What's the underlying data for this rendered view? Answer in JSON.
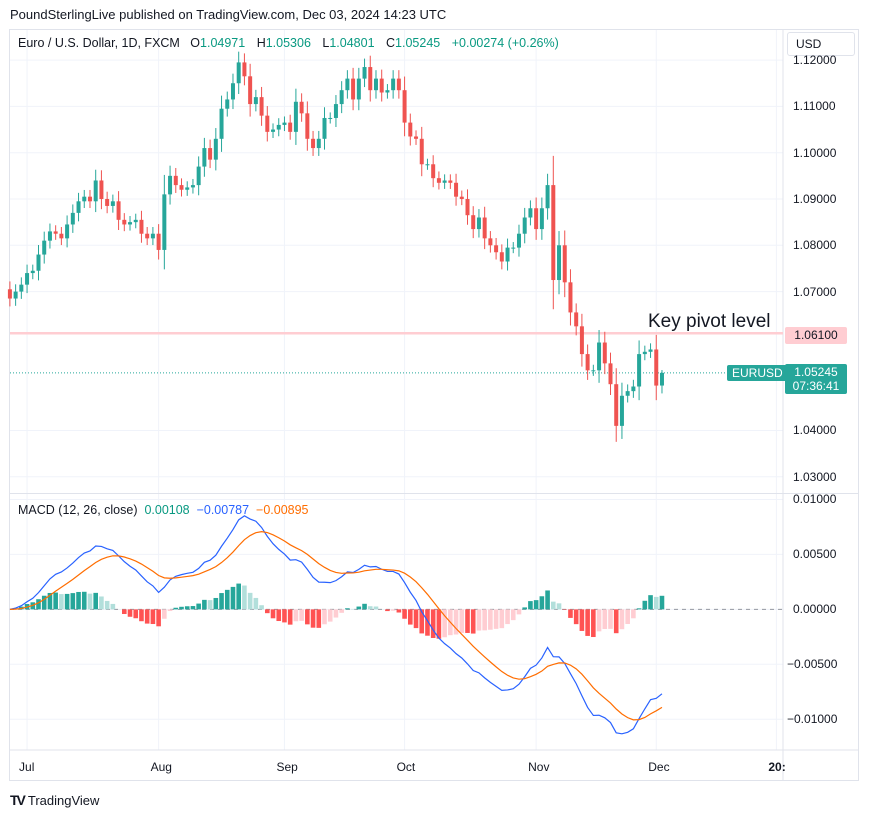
{
  "header": {
    "published": "PoundSterlingLive published on TradingView.com, Dec 03, 2024 14:23 UTC"
  },
  "legend": {
    "symbol": "Euro / U.S. Dollar, 1D, FXCM",
    "o_label": "O",
    "o": "1.04971",
    "h_label": "H",
    "h": "1.05306",
    "l_label": "L",
    "l": "1.04801",
    "c_label": "C",
    "c": "1.05245",
    "change": "+0.00274 (+0.26%)"
  },
  "currency": "USD",
  "annotation": {
    "text": "Key pivot level",
    "price_label": "1.06100"
  },
  "last_price": {
    "symbol": "EURUSD",
    "price": "1.05245",
    "countdown": "07:36:41"
  },
  "macd_legend": {
    "title": "MACD (12, 26, close)",
    "hist": "0.00108",
    "macd": "−0.00787",
    "signal": "−0.00895"
  },
  "footer": {
    "brand": "TradingView"
  },
  "colors": {
    "up": "#26a69a",
    "down": "#ef5350",
    "macd": "#2962ff",
    "signal": "#ff6d00",
    "hist_up_strong": "#26a69a",
    "hist_up_weak": "#b2dfdb",
    "hist_down_strong": "#ff5252",
    "hist_down_weak": "#ffcdd2",
    "pivot": "#ffcdd2"
  },
  "chart_data": {
    "type": "candlestick",
    "title": "Euro / U.S. Dollar, 1D, FXCM",
    "price_ticks": [
      "1.12000",
      "1.11000",
      "1.10000",
      "1.09000",
      "1.08000",
      "1.07000",
      "1.04000",
      "1.03000"
    ],
    "price_range": [
      1.0265,
      1.1265
    ],
    "macd_ticks": [
      "0.01000",
      "0.00500",
      "0.00000",
      "−0.00500",
      "−0.01000"
    ],
    "macd_range": [
      -0.0128,
      0.0105
    ],
    "time_labels": [
      "Jul",
      "Aug",
      "Sep",
      "Oct",
      "Nov",
      "Dec",
      "20:"
    ],
    "time_label_index": [
      3,
      26,
      48,
      69,
      92,
      113,
      134
    ],
    "pivot_level": 1.061,
    "first_open": 1.0705,
    "closes": [
      1.0685,
      1.07,
      1.0715,
      1.074,
      1.0745,
      1.078,
      1.081,
      1.083,
      1.0825,
      1.0815,
      1.0845,
      1.087,
      1.0895,
      1.0905,
      1.0895,
      1.094,
      1.09,
      1.0885,
      1.0895,
      1.0855,
      1.0845,
      1.085,
      1.0855,
      1.0825,
      1.0815,
      1.0825,
      1.079,
      1.091,
      1.095,
      1.093,
      1.092,
      1.0925,
      1.093,
      1.097,
      1.101,
      1.0985,
      1.103,
      1.1095,
      1.1115,
      1.115,
      1.1195,
      1.1165,
      1.1105,
      1.112,
      1.108,
      1.1045,
      1.105,
      1.106,
      1.1065,
      1.1045,
      1.111,
      1.1085,
      1.103,
      1.101,
      1.103,
      1.1075,
      1.1075,
      1.1105,
      1.1135,
      1.116,
      1.1115,
      1.116,
      1.1185,
      1.1135,
      1.116,
      1.113,
      1.1135,
      1.116,
      1.1135,
      1.1065,
      1.1035,
      1.103,
      1.0975,
      1.0975,
      1.0945,
      1.0935,
      1.094,
      1.0935,
      1.0905,
      1.09,
      1.0865,
      1.0835,
      1.086,
      1.0815,
      1.08,
      1.0785,
      1.0765,
      1.0795,
      1.0795,
      1.0825,
      1.086,
      1.088,
      1.0835,
      1.088,
      1.093,
      1.0725,
      1.08,
      1.072,
      1.0655,
      1.0625,
      1.0565,
      1.053,
      1.053,
      1.059,
      1.0545,
      1.05,
      1.041,
      1.0475,
      1.0485,
      1.0495,
      1.0565,
      1.057,
      1.0575,
      1.0497,
      1.05245
    ],
    "last_candle": {
      "open": 1.04971,
      "high": 1.05306,
      "low": 1.04801,
      "close": 1.05245
    },
    "macd_params": [
      12,
      26,
      9
    ]
  }
}
